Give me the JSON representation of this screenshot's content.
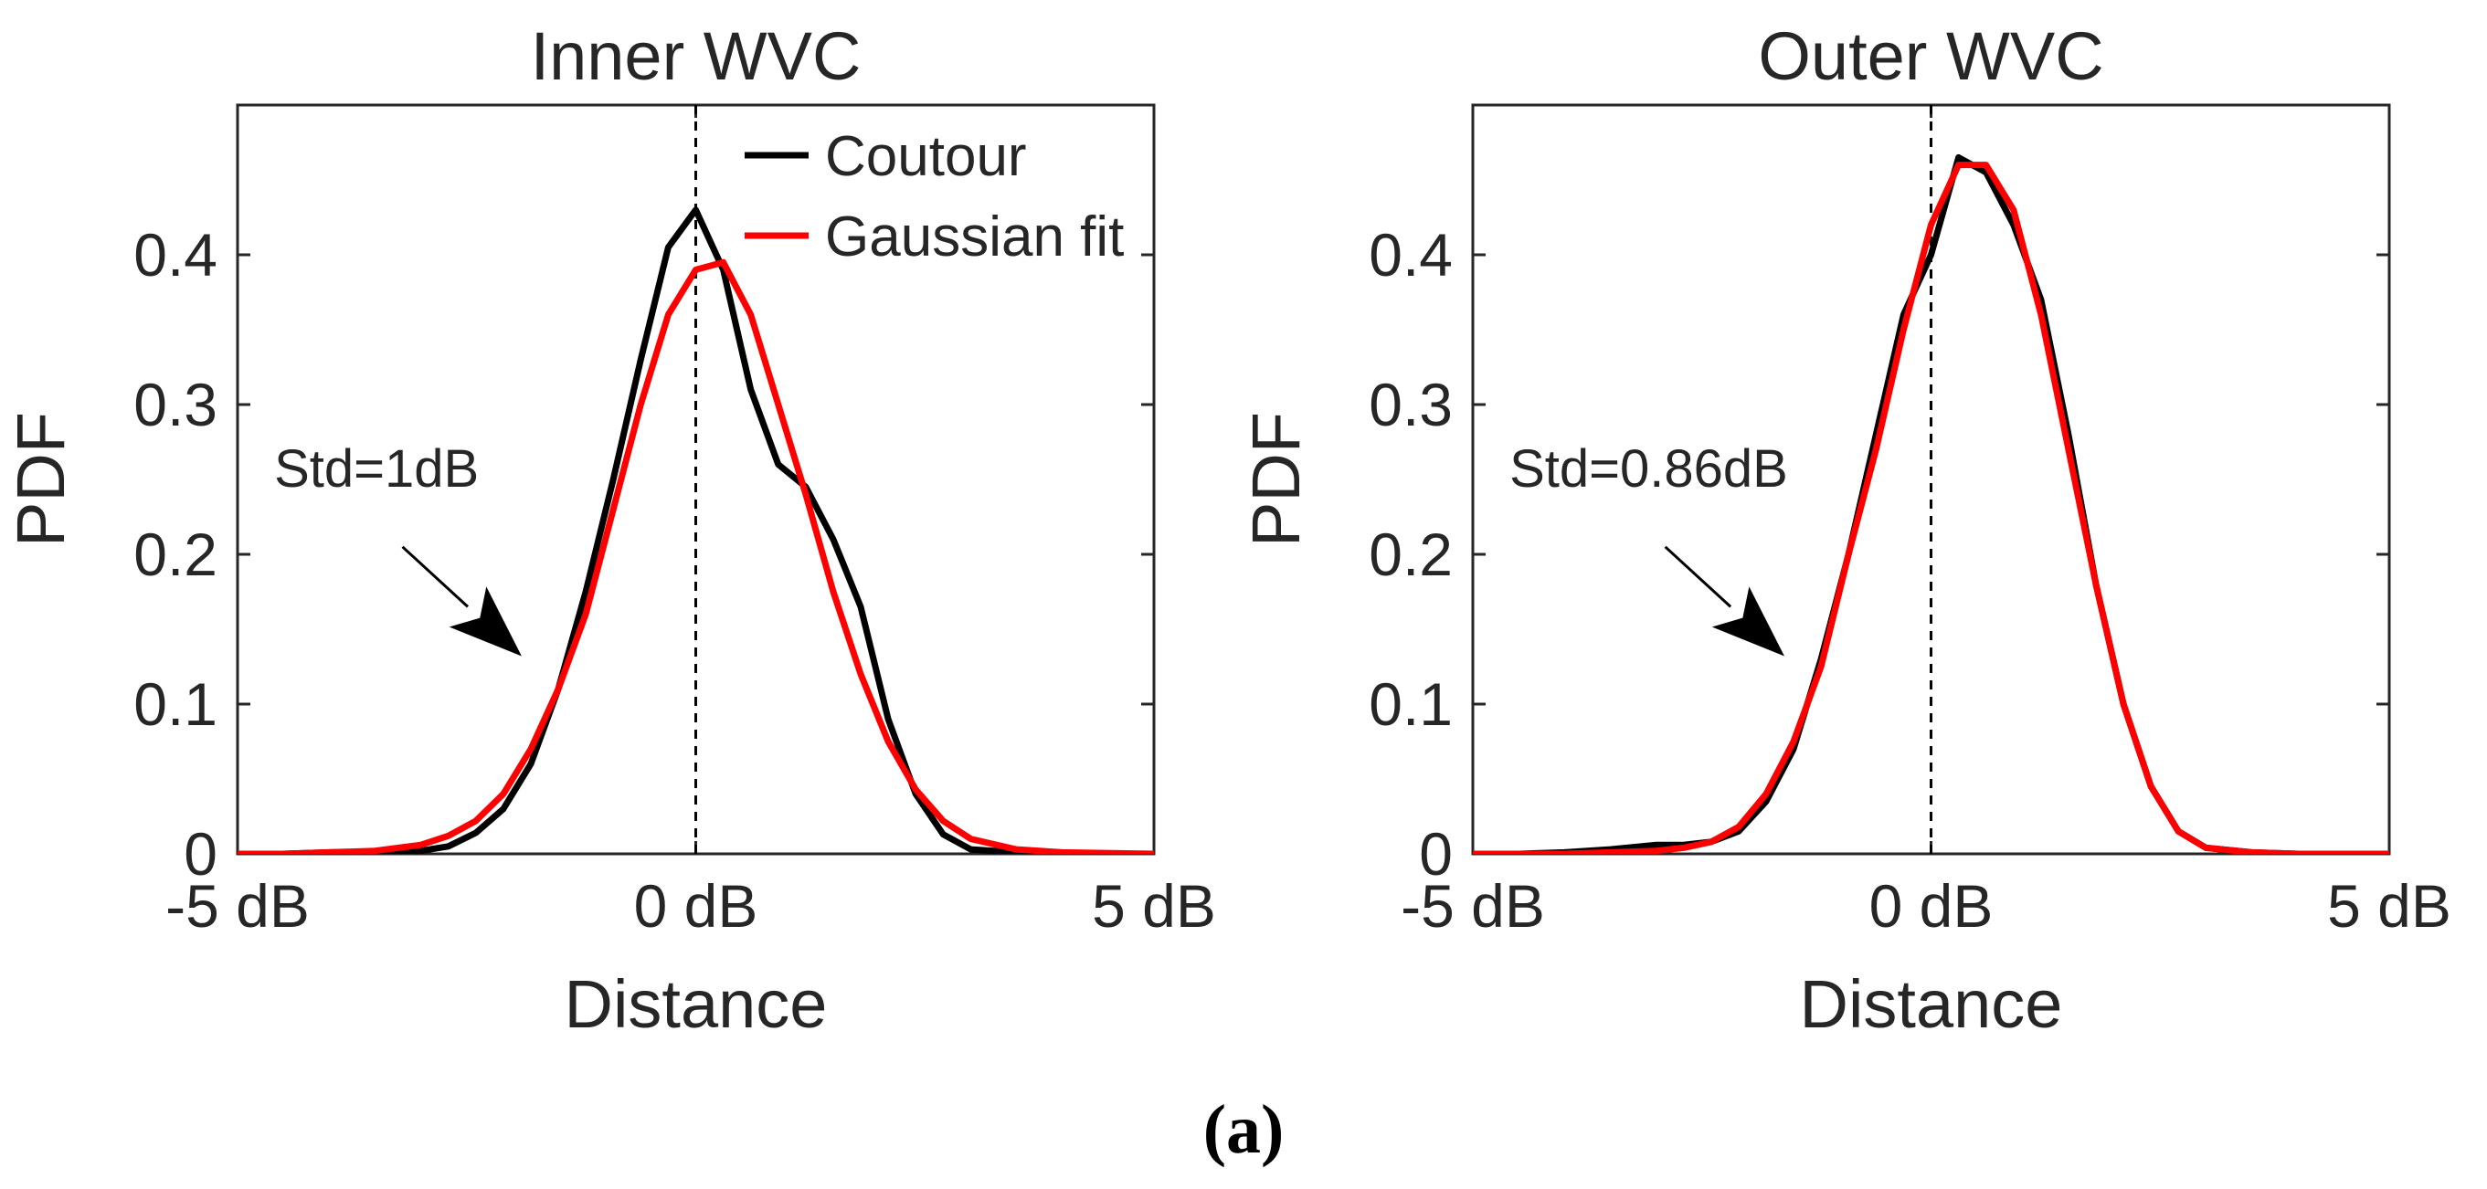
{
  "colors": {
    "contour": "#000000",
    "gaussian": "#ff0000",
    "axis": "#262626"
  },
  "caption": "(a)",
  "chart_data": [
    {
      "type": "line",
      "title": "Inner WVC",
      "xlabel": "Distance",
      "ylabel": "PDF",
      "xlim": [
        -5,
        5
      ],
      "ylim": [
        0,
        0.5
      ],
      "xticks": [
        -5,
        0,
        5
      ],
      "xtick_labels": [
        "-5 dB",
        "0 dB",
        "5 dB"
      ],
      "yticks": [
        0,
        0.1,
        0.2,
        0.3,
        0.4
      ],
      "ytick_labels": [
        "0",
        "0.1",
        "0.2",
        "0.3",
        "0.4"
      ],
      "vline_x": 0,
      "legend": {
        "placement": "top-right",
        "entries": [
          "Coutour",
          "Gaussian fit"
        ]
      },
      "annotation": {
        "text": "Std=1dB",
        "text_at": [
          -4.6,
          0.245
        ],
        "arrow_from": [
          -3.2,
          0.205
        ],
        "arrow_to": [
          -1.9,
          0.132
        ]
      },
      "series": [
        {
          "name": "Coutour",
          "color": "#000000",
          "x": [
            -5,
            -4.5,
            -4,
            -3.5,
            -3,
            -2.7,
            -2.4,
            -2.1,
            -1.8,
            -1.5,
            -1.2,
            -0.9,
            -0.6,
            -0.3,
            0,
            0.3,
            0.6,
            0.9,
            1.2,
            1.5,
            1.8,
            2.1,
            2.4,
            2.7,
            3,
            3.5,
            4,
            5
          ],
          "y": [
            0,
            0,
            0.001,
            0.001,
            0.002,
            0.005,
            0.014,
            0.03,
            0.06,
            0.11,
            0.175,
            0.25,
            0.33,
            0.405,
            0.43,
            0.39,
            0.31,
            0.26,
            0.245,
            0.21,
            0.165,
            0.09,
            0.04,
            0.013,
            0.003,
            0.001,
            0,
            0
          ]
        },
        {
          "name": "Gaussian fit",
          "color": "#ff0000",
          "x": [
            -5,
            -4.5,
            -4,
            -3.5,
            -3,
            -2.7,
            -2.4,
            -2.1,
            -1.8,
            -1.5,
            -1.2,
            -0.9,
            -0.6,
            -0.3,
            0,
            0.3,
            0.6,
            0.9,
            1.2,
            1.5,
            1.8,
            2.1,
            2.4,
            2.7,
            3,
            3.5,
            4,
            5
          ],
          "y": [
            0,
            0,
            0.001,
            0.002,
            0.006,
            0.012,
            0.022,
            0.04,
            0.07,
            0.11,
            0.16,
            0.23,
            0.3,
            0.36,
            0.39,
            0.395,
            0.36,
            0.3,
            0.24,
            0.175,
            0.12,
            0.075,
            0.043,
            0.022,
            0.01,
            0.003,
            0.001,
            0
          ]
        }
      ]
    },
    {
      "type": "line",
      "title": "Outer WVC",
      "xlabel": "Distance",
      "ylabel": "PDF",
      "xlim": [
        -5,
        5
      ],
      "ylim": [
        0,
        0.5
      ],
      "xticks": [
        -5,
        0,
        5
      ],
      "xtick_labels": [
        "-5 dB",
        "0 dB",
        "5 dB"
      ],
      "yticks": [
        0,
        0.1,
        0.2,
        0.3,
        0.4
      ],
      "ytick_labels": [
        "0",
        "0.1",
        "0.2",
        "0.3",
        "0.4"
      ],
      "vline_x": 0,
      "annotation": {
        "text": "Std=0.86dB",
        "text_at": [
          -4.6,
          0.245
        ],
        "arrow_from": [
          -2.9,
          0.205
        ],
        "arrow_to": [
          -1.6,
          0.132
        ]
      },
      "series": [
        {
          "name": "Coutour",
          "color": "#000000",
          "x": [
            -5,
            -4.5,
            -4,
            -3.5,
            -3,
            -2.7,
            -2.4,
            -2.1,
            -1.8,
            -1.5,
            -1.2,
            -0.9,
            -0.6,
            -0.3,
            0,
            0.3,
            0.6,
            0.9,
            1.2,
            1.5,
            1.8,
            2.1,
            2.4,
            2.7,
            3,
            3.5,
            4,
            5
          ],
          "y": [
            0,
            0,
            0.001,
            0.003,
            0.006,
            0.006,
            0.008,
            0.015,
            0.035,
            0.07,
            0.13,
            0.2,
            0.28,
            0.36,
            0.4,
            0.465,
            0.455,
            0.42,
            0.37,
            0.28,
            0.18,
            0.1,
            0.045,
            0.015,
            0.004,
            0.001,
            0,
            0
          ]
        },
        {
          "name": "Gaussian fit",
          "color": "#ff0000",
          "x": [
            -5,
            -4.5,
            -4,
            -3.5,
            -3,
            -2.7,
            -2.4,
            -2.1,
            -1.8,
            -1.5,
            -1.2,
            -0.9,
            -0.6,
            -0.3,
            0,
            0.3,
            0.6,
            0.9,
            1.2,
            1.5,
            1.8,
            2.1,
            2.4,
            2.7,
            3,
            3.5,
            4,
            5
          ],
          "y": [
            0,
            0,
            0,
            0.001,
            0.002,
            0.004,
            0.008,
            0.018,
            0.04,
            0.075,
            0.125,
            0.2,
            0.27,
            0.35,
            0.42,
            0.46,
            0.46,
            0.43,
            0.36,
            0.27,
            0.18,
            0.1,
            0.045,
            0.015,
            0.004,
            0.001,
            0,
            0
          ]
        }
      ]
    }
  ]
}
